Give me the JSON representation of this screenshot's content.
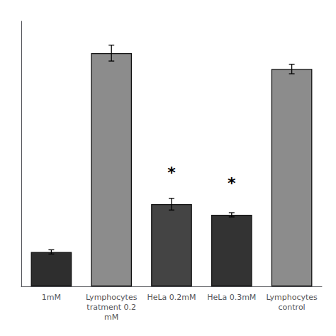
{
  "chart_data": {
    "type": "bar",
    "categories": [
      "1mM",
      "Lymphocytes\ntratment 0.2\nmM",
      "HeLa 0.2mM",
      "HeLa 0.3mM",
      "Lymphocytes\ncontrol"
    ],
    "values": [
      13,
      88,
      31,
      27,
      82
    ],
    "errors": [
      0.8,
      3.0,
      2.2,
      0.8,
      1.8
    ],
    "colors": [
      "#2e2e2e",
      "#8c8c8c",
      "#444444",
      "#333333",
      "#8c8c8c"
    ],
    "annotations": [
      {
        "text": "*",
        "x": "HeLa 0.2mM",
        "y": 40
      },
      {
        "text": "*",
        "x": "HeLa 0.3mM",
        "y": 36
      }
    ],
    "ylim": [
      0,
      100
    ],
    "grid": false,
    "tick_labels": "x"
  }
}
